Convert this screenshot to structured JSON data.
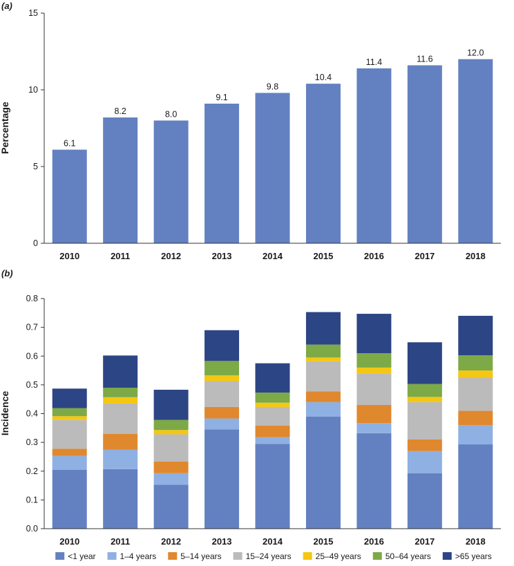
{
  "chart_data": [
    {
      "panel": "(a)",
      "type": "bar",
      "categories": [
        "2010",
        "2011",
        "2012",
        "2013",
        "2014",
        "2015",
        "2016",
        "2017",
        "2018"
      ],
      "values": [
        6.1,
        8.2,
        8.0,
        9.1,
        9.8,
        10.4,
        11.4,
        11.6,
        12.0
      ],
      "data_labels": [
        "6.1",
        "8.2",
        "8.0",
        "9.1",
        "9.8",
        "10.4",
        "11.4",
        "11.6",
        "12.0"
      ],
      "ylabel": "Percentage",
      "xlabel": "",
      "ylim": [
        0,
        15
      ],
      "yticks": [
        "0",
        "5",
        "10",
        "15"
      ],
      "ytick_values": [
        0,
        5,
        10,
        15
      ],
      "color": "#6381C1"
    },
    {
      "panel": "(b)",
      "type": "bar",
      "stacked": true,
      "categories": [
        "2010",
        "2011",
        "2012",
        "2013",
        "2014",
        "2015",
        "2016",
        "2017",
        "2018"
      ],
      "ylabel": "Incidence",
      "xlabel": "",
      "ylim": [
        0,
        0.8
      ],
      "yticks": [
        "0.0",
        "0.1",
        "0.2",
        "0.3",
        "0.4",
        "0.5",
        "0.6",
        "0.7",
        "0.8"
      ],
      "ytick_values": [
        0,
        0.1,
        0.2,
        0.3,
        0.4,
        0.5,
        0.6,
        0.7,
        0.8
      ],
      "legend_position": "bottom",
      "series": [
        {
          "name": "<1 year",
          "color": "#6381C1",
          "values": [
            0.205,
            0.207,
            0.153,
            0.345,
            0.295,
            0.39,
            0.332,
            0.193,
            0.293
          ]
        },
        {
          "name": "1–4 years",
          "color": "#8FB0E2",
          "values": [
            0.048,
            0.068,
            0.04,
            0.038,
            0.023,
            0.05,
            0.035,
            0.077,
            0.067
          ]
        },
        {
          "name": "5–14 years",
          "color": "#E0882E",
          "values": [
            0.025,
            0.055,
            0.04,
            0.04,
            0.04,
            0.037,
            0.063,
            0.04,
            0.05
          ]
        },
        {
          "name": "15–24 years",
          "color": "#BBBBBB",
          "values": [
            0.1,
            0.105,
            0.095,
            0.09,
            0.065,
            0.105,
            0.11,
            0.13,
            0.115
          ]
        },
        {
          "name": "25–49 years",
          "color": "#F4C713",
          "values": [
            0.013,
            0.022,
            0.015,
            0.02,
            0.015,
            0.013,
            0.02,
            0.018,
            0.025
          ]
        },
        {
          "name": "50–64 years",
          "color": "#7DA946",
          "values": [
            0.028,
            0.033,
            0.035,
            0.05,
            0.035,
            0.045,
            0.05,
            0.045,
            0.053
          ]
        },
        {
          "name": ">65 years",
          "color": "#2C4585",
          "values": [
            0.068,
            0.112,
            0.105,
            0.107,
            0.102,
            0.113,
            0.137,
            0.145,
            0.137
          ]
        }
      ]
    }
  ]
}
